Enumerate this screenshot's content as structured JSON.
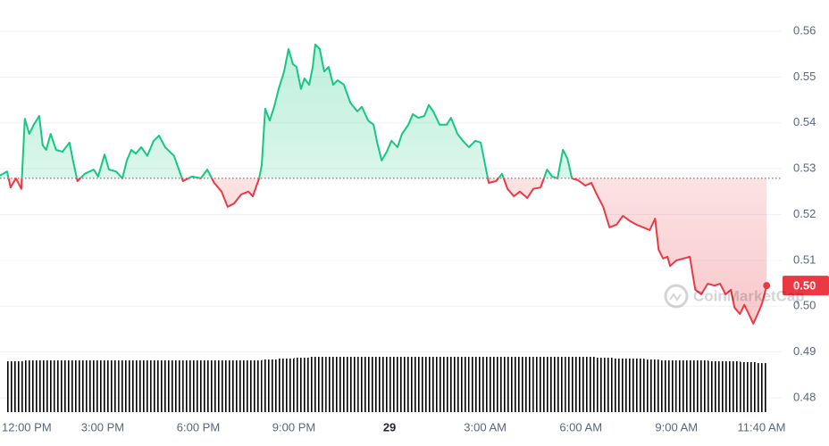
{
  "chart_data": {
    "type": "line",
    "baseline": 0.5279,
    "up_color": "#16c784",
    "down_color": "#ea3943",
    "watermark": "CoinMarketCap",
    "current_price_label": "0.50",
    "xlim": [
      -0.22,
      24.3
    ],
    "ylim": [
      0.4769,
      0.5668
    ],
    "yticks": [
      0.48,
      0.49,
      0.5,
      0.51,
      0.52,
      0.53,
      0.54,
      0.55,
      0.56
    ],
    "ytick_labels": [
      "0.48",
      "0.49",
      "0.50",
      "0.51",
      "0.52",
      "0.53",
      "0.54",
      "0.55",
      "0.56"
    ],
    "grid": true,
    "xticks": [
      {
        "value": 0,
        "label": "12:00 PM"
      },
      {
        "value": 3,
        "label": "3:00 PM"
      },
      {
        "value": 6,
        "label": "6:00 PM"
      },
      {
        "value": 9,
        "label": "9:00 PM"
      },
      {
        "value": 12,
        "label": "29"
      },
      {
        "value": 15,
        "label": "3:00 AM"
      },
      {
        "value": 18,
        "label": "6:00 AM"
      },
      {
        "value": 21,
        "label": "9:00 AM"
      },
      {
        "value": 23.67,
        "label": "11:40 AM"
      }
    ],
    "x": [
      -0.22,
      0.0,
      0.11,
      0.28,
      0.45,
      0.56,
      0.7,
      0.84,
      1.01,
      1.12,
      1.23,
      1.37,
      1.54,
      1.74,
      1.96,
      2.07,
      2.21,
      2.44,
      2.72,
      2.86,
      3.06,
      3.2,
      3.42,
      3.62,
      3.76,
      3.9,
      4.04,
      4.21,
      4.4,
      4.6,
      4.77,
      4.96,
      5.24,
      5.52,
      5.8,
      6.08,
      6.28,
      6.5,
      6.73,
      6.92,
      7.12,
      7.35,
      7.57,
      7.71,
      7.91,
      7.99,
      8.1,
      8.24,
      8.38,
      8.52,
      8.69,
      8.83,
      8.97,
      9.08,
      9.22,
      9.33,
      9.48,
      9.59,
      9.67,
      9.81,
      9.95,
      10.09,
      10.23,
      10.37,
      10.57,
      10.77,
      10.99,
      11.13,
      11.33,
      11.5,
      11.61,
      11.75,
      11.91,
      12.06,
      12.25,
      12.39,
      12.59,
      12.73,
      12.9,
      13.09,
      13.23,
      13.37,
      13.57,
      13.79,
      13.93,
      14.13,
      14.3,
      14.49,
      14.69,
      14.86,
      14.97,
      15.11,
      15.34,
      15.53,
      15.7,
      15.9,
      16.09,
      16.32,
      16.51,
      16.74,
      16.94,
      17.1,
      17.27,
      17.44,
      17.58,
      17.72,
      17.91,
      18.14,
      18.33,
      18.5,
      18.7,
      18.9,
      19.12,
      19.32,
      19.54,
      19.74,
      19.96,
      20.16,
      20.33,
      20.44,
      20.58,
      20.72,
      20.8,
      21.0,
      21.22,
      21.42,
      21.59,
      21.78,
      21.98,
      22.2,
      22.37,
      22.54,
      22.71,
      22.82,
      22.99,
      23.13,
      23.27,
      23.41,
      23.55,
      23.69,
      23.83
    ],
    "values": [
      0.5285,
      0.5294,
      0.5259,
      0.5279,
      0.5256,
      0.5409,
      0.5376,
      0.5396,
      0.5415,
      0.5351,
      0.5341,
      0.5376,
      0.5341,
      0.5337,
      0.5357,
      0.5318,
      0.5273,
      0.5289,
      0.5298,
      0.5283,
      0.5331,
      0.5298,
      0.5294,
      0.5279,
      0.5318,
      0.5341,
      0.5333,
      0.5347,
      0.5328,
      0.5361,
      0.5372,
      0.5347,
      0.5328,
      0.5273,
      0.5283,
      0.5279,
      0.5298,
      0.5269,
      0.525,
      0.5217,
      0.5224,
      0.5244,
      0.525,
      0.524,
      0.5279,
      0.5308,
      0.5431,
      0.5405,
      0.5435,
      0.5474,
      0.5512,
      0.5561,
      0.5528,
      0.5522,
      0.5474,
      0.5497,
      0.5483,
      0.5522,
      0.5571,
      0.5561,
      0.5512,
      0.5522,
      0.5483,
      0.5493,
      0.5483,
      0.5444,
      0.5425,
      0.5435,
      0.5405,
      0.5396,
      0.5357,
      0.5318,
      0.5337,
      0.5361,
      0.5347,
      0.5376,
      0.5396,
      0.5419,
      0.5411,
      0.5415,
      0.5439,
      0.5425,
      0.5396,
      0.5396,
      0.5411,
      0.5376,
      0.5361,
      0.5347,
      0.5361,
      0.5357,
      0.5318,
      0.5269,
      0.5273,
      0.5289,
      0.5256,
      0.524,
      0.525,
      0.5236,
      0.5256,
      0.5259,
      0.5298,
      0.5283,
      0.5279,
      0.5341,
      0.5322,
      0.5279,
      0.5275,
      0.5263,
      0.5269,
      0.5244,
      0.5217,
      0.5172,
      0.5178,
      0.5197,
      0.5186,
      0.5178,
      0.5172,
      0.5166,
      0.5191,
      0.5123,
      0.5104,
      0.5108,
      0.5088,
      0.51,
      0.5104,
      0.5108,
      0.5036,
      0.5026,
      0.5049,
      0.5045,
      0.5049,
      0.5026,
      0.5036,
      0.4997,
      0.4983,
      0.5003,
      0.4983,
      0.4962,
      0.4983,
      0.5007,
      0.5045
    ],
    "volume": {
      "color": "#d5dae1",
      "x": [
        0,
        0.5,
        1,
        1.5,
        2,
        2.5,
        3,
        3.5,
        4,
        4.5,
        5,
        5.5,
        6,
        6.5,
        7,
        7.5,
        8,
        8.5,
        9,
        9.5,
        10,
        10.5,
        11,
        11.5,
        12,
        12.5,
        13,
        13.5,
        14,
        14.5,
        15,
        15.5,
        16,
        16.5,
        17,
        17.5,
        18,
        18.5,
        19,
        19.5,
        20,
        20.5,
        21,
        21.5,
        22,
        22.5,
        23,
        23.5
      ],
      "values": [
        57,
        58,
        58,
        58,
        58,
        58,
        58,
        58,
        58,
        58,
        58,
        58,
        58,
        58,
        58,
        58,
        59,
        60,
        61,
        62,
        62,
        62,
        62,
        62,
        62,
        62,
        62,
        62,
        62,
        62,
        62,
        62,
        62,
        62,
        62,
        62,
        62,
        61,
        60,
        60,
        59,
        58,
        58,
        58,
        57,
        57,
        56,
        55
      ]
    }
  }
}
